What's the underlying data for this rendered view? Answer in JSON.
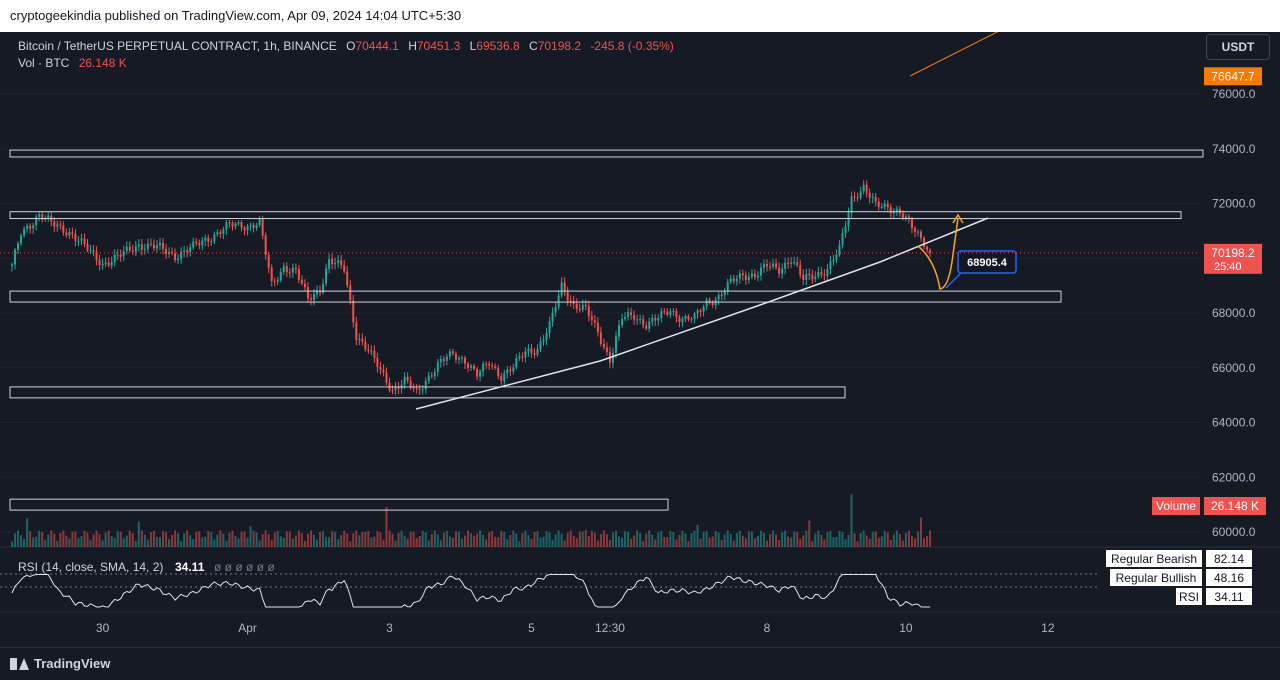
{
  "header": {
    "published": "cryptogeekindia published on TradingView.com, Apr 09, 2024 14:04 UTC+5:30"
  },
  "legend": {
    "symbol": "Bitcoin / TetherUS PERPETUAL CONTRACT, 1h, BINANCE",
    "open": "70444.1",
    "high": "70451.3",
    "low": "69536.8",
    "close": "70198.2",
    "change": "-245.8 (-0.35%)",
    "volume_label": "Vol · BTC",
    "volume_value": "26.148 K"
  },
  "currency_button": "USDT",
  "footer": {
    "brand": "TradingView"
  },
  "colors": {
    "up": "#26a69a",
    "down": "#ef5350",
    "background": "#161a25",
    "grid": "#2a2e39",
    "text": "#b2b5be",
    "orange": "#f57c00"
  },
  "chart_data": {
    "type": "candlestick",
    "price_axis": {
      "min": 59000,
      "max": 77000,
      "ticks": [
        60000,
        62000,
        64000,
        66000,
        68000,
        70000,
        72000,
        74000,
        76000
      ],
      "tick_labels": [
        "60000.0",
        "62000.0",
        "64000.0",
        "66000.0",
        "68000.0",
        "70000.0",
        "72000.0",
        "74000.0",
        "76000.0"
      ]
    },
    "x_ticks": [
      {
        "label": "30",
        "index": 30
      },
      {
        "label": "Apr",
        "index": 78
      },
      {
        "label": "3",
        "index": 125
      },
      {
        "label": "5",
        "index": 172
      },
      {
        "label": "12:30",
        "index": 198
      },
      {
        "label": "8",
        "index": 250
      },
      {
        "label": "10",
        "index": 296
      },
      {
        "label": "12",
        "index": 343
      }
    ],
    "price_badges": [
      {
        "label": "76647.7",
        "price": 76647.7,
        "color": "#f57c00"
      },
      {
        "label": "70198.2",
        "sub": "25:40",
        "price": 70198.2,
        "color": "#ef5350"
      }
    ],
    "volume_badge": {
      "label": "Volume",
      "value": "26.148 K"
    },
    "last_price": 70198.2,
    "anchors": [
      [
        0,
        69700
      ],
      [
        3,
        70900
      ],
      [
        9,
        71600
      ],
      [
        14,
        71200
      ],
      [
        20,
        70900
      ],
      [
        26,
        70200
      ],
      [
        30,
        69800
      ],
      [
        36,
        70100
      ],
      [
        42,
        70500
      ],
      [
        48,
        70400
      ],
      [
        54,
        70100
      ],
      [
        60,
        70400
      ],
      [
        66,
        70800
      ],
      [
        72,
        71200
      ],
      [
        78,
        71200
      ],
      [
        82,
        71300
      ],
      [
        86,
        69000
      ],
      [
        90,
        69700
      ],
      [
        94,
        69500
      ],
      [
        98,
        68500
      ],
      [
        102,
        68900
      ],
      [
        105,
        69900
      ],
      [
        110,
        69600
      ],
      [
        114,
        67200
      ],
      [
        118,
        66600
      ],
      [
        122,
        65900
      ],
      [
        126,
        65200
      ],
      [
        130,
        65500
      ],
      [
        134,
        65100
      ],
      [
        138,
        65700
      ],
      [
        142,
        66200
      ],
      [
        146,
        66500
      ],
      [
        150,
        66300
      ],
      [
        154,
        65700
      ],
      [
        158,
        66200
      ],
      [
        162,
        65700
      ],
      [
        166,
        66000
      ],
      [
        170,
        66600
      ],
      [
        174,
        66700
      ],
      [
        178,
        67500
      ],
      [
        182,
        69000
      ],
      [
        186,
        68300
      ],
      [
        190,
        68100
      ],
      [
        194,
        67300
      ],
      [
        198,
        66300
      ],
      [
        202,
        67800
      ],
      [
        206,
        67900
      ],
      [
        210,
        67600
      ],
      [
        214,
        67800
      ],
      [
        218,
        68100
      ],
      [
        222,
        67800
      ],
      [
        226,
        67800
      ],
      [
        230,
        68400
      ],
      [
        234,
        68600
      ],
      [
        238,
        69100
      ],
      [
        242,
        69400
      ],
      [
        246,
        69400
      ],
      [
        250,
        69700
      ],
      [
        254,
        69600
      ],
      [
        258,
        70000
      ],
      [
        262,
        69200
      ],
      [
        266,
        69400
      ],
      [
        270,
        69600
      ],
      [
        274,
        70300
      ],
      [
        278,
        72200
      ],
      [
        282,
        72600
      ],
      [
        286,
        71900
      ],
      [
        290,
        71900
      ],
      [
        294,
        71700
      ],
      [
        298,
        71100
      ],
      [
        302,
        70600
      ],
      [
        304,
        70198
      ]
    ],
    "zones": [
      {
        "from": 73700,
        "to": 73950,
        "start": 0,
        "end": 1203
      },
      {
        "from": 71450,
        "to": 71700,
        "start": 0,
        "end": 1181
      },
      {
        "from": 68400,
        "to": 68800,
        "start": 0,
        "end": 1061
      },
      {
        "from": 64900,
        "to": 65300,
        "start": 0,
        "end": 845
      },
      {
        "from": 60800,
        "to": 61200,
        "start": 0,
        "end": 668
      }
    ],
    "trendline": [
      [
        416,
        409
      ],
      [
        600,
        361
      ],
      [
        760,
        305
      ],
      [
        880,
        262
      ],
      [
        988,
        218
      ]
    ],
    "projection_label": "68905.4",
    "projection_price": 68905.4,
    "rsi": {
      "label": "RSI (14, close, SMA, 14, 2)",
      "value": "34.11",
      "extra": "ø ø ø ø ø ø",
      "levels": [
        {
          "label": "Regular Bearish",
          "value": "82.14"
        },
        {
          "label": "Regular Bullish",
          "value": "48.16"
        },
        {
          "label": "RSI",
          "value": "34.11"
        }
      ]
    }
  }
}
